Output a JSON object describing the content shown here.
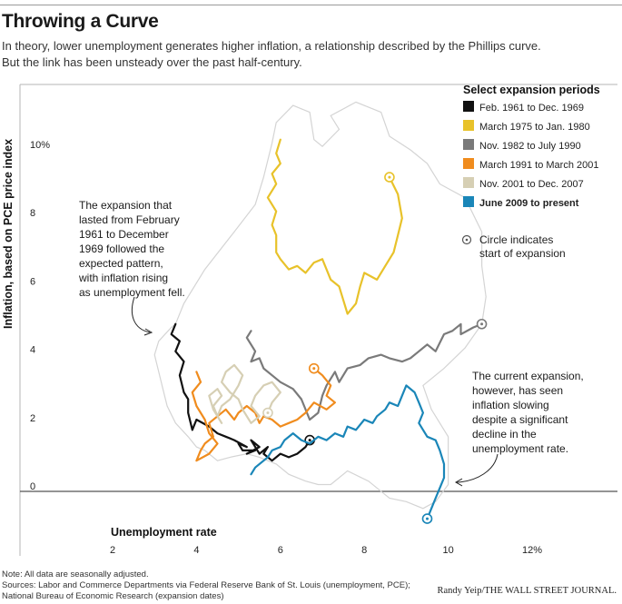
{
  "title": "Throwing a Curve",
  "subtitle_line1": "In theory, lower unemployment generates higher inflation, a relationship described by the Phillips curve.",
  "subtitle_line2": "But the link has been unsteady over the past half-century.",
  "note": "Note: All data are seasonally adjusted.",
  "sources_line1": "Sources: Labor and Commerce Departments via Federal Reserve Bank of St. Louis (unemployment, PCE);",
  "sources_line2": "National Bureau of Economic Research (expansion dates)",
  "credit": "Randy Yeip/THE WALL STREET JOURNAL.",
  "chart_data": {
    "type": "line",
    "xlabel": "Unemployment rate",
    "ylabel": "Inflation, based on PCE price index",
    "xlim": [
      1,
      13
    ],
    "ylim": [
      -2,
      11
    ],
    "x_ticks": [
      "2",
      "4",
      "6",
      "8",
      "10",
      "12%"
    ],
    "y_ticks": [
      "0",
      "2",
      "4",
      "6",
      "8",
      "10%"
    ],
    "grid": false,
    "legend_position": "right",
    "legend_title": "Select expansion periods",
    "background_series_color": "#d4d4d4",
    "circle_note_line1": "Circle indicates",
    "circle_note_line2": "start of expansion",
    "annotation_left": [
      "The expansion that",
      "lasted from February",
      "1961 to December",
      "1969 followed the",
      "expected pattern,",
      "with inflation rising",
      "as unemployment fell."
    ],
    "annotation_right": [
      "The current expansion,",
      "however, has seen",
      "inflation slowing",
      "despite a significant",
      "decline in the",
      "unemployment rate."
    ],
    "series": [
      {
        "name": "Feb. 1961 to Dec. 1969",
        "color": "#111111",
        "bold": false,
        "points": [
          [
            6.7,
            1.5
          ],
          [
            6.6,
            1.3
          ],
          [
            6.4,
            1.1
          ],
          [
            6.2,
            1.0
          ],
          [
            6.0,
            1.1
          ],
          [
            5.8,
            0.9
          ],
          [
            5.6,
            1.1
          ],
          [
            5.7,
            1.3
          ],
          [
            5.5,
            1.1
          ],
          [
            5.3,
            1.5
          ],
          [
            5.5,
            1.3
          ],
          [
            5.2,
            1.1
          ],
          [
            5.4,
            1.2
          ],
          [
            5.1,
            1.2
          ],
          [
            5.0,
            1.4
          ],
          [
            5.2,
            1.3
          ],
          [
            4.9,
            1.5
          ],
          [
            4.7,
            1.6
          ],
          [
            4.5,
            1.7
          ],
          [
            4.3,
            1.9
          ],
          [
            4.0,
            2.1
          ],
          [
            3.9,
            1.8
          ],
          [
            3.8,
            2.3
          ],
          [
            3.8,
            2.7
          ],
          [
            3.7,
            2.9
          ],
          [
            3.6,
            3.4
          ],
          [
            3.7,
            3.8
          ],
          [
            3.5,
            4.1
          ],
          [
            3.6,
            4.4
          ],
          [
            3.4,
            4.6
          ],
          [
            3.5,
            4.9
          ]
        ]
      },
      {
        "name": "March 1975 to Jan. 1980",
        "color": "#e8c22a",
        "bold": false,
        "points": [
          [
            8.6,
            9.2
          ],
          [
            8.8,
            8.7
          ],
          [
            8.9,
            8.0
          ],
          [
            8.8,
            7.5
          ],
          [
            8.7,
            7.0
          ],
          [
            8.5,
            6.6
          ],
          [
            8.3,
            6.2
          ],
          [
            8.0,
            6.4
          ],
          [
            7.9,
            6.0
          ],
          [
            7.8,
            5.5
          ],
          [
            7.6,
            5.2
          ],
          [
            7.5,
            5.6
          ],
          [
            7.4,
            6.0
          ],
          [
            7.2,
            6.2
          ],
          [
            7.1,
            6.5
          ],
          [
            7.0,
            6.8
          ],
          [
            6.8,
            6.7
          ],
          [
            6.6,
            6.4
          ],
          [
            6.4,
            6.6
          ],
          [
            6.2,
            6.5
          ],
          [
            6.0,
            6.8
          ],
          [
            5.9,
            7.0
          ],
          [
            5.9,
            7.5
          ],
          [
            5.8,
            7.8
          ],
          [
            5.9,
            8.2
          ],
          [
            5.7,
            8.6
          ],
          [
            5.9,
            9.0
          ],
          [
            5.8,
            9.3
          ],
          [
            6.0,
            9.6
          ],
          [
            5.9,
            9.9
          ],
          [
            6.0,
            10.3
          ]
        ]
      },
      {
        "name": "Nov. 1982 to July 1990",
        "color": "#7a7a7a",
        "bold": false,
        "points": [
          [
            10.8,
            4.9
          ],
          [
            10.6,
            4.8
          ],
          [
            10.3,
            4.6
          ],
          [
            10.3,
            4.9
          ],
          [
            10.1,
            4.7
          ],
          [
            9.9,
            4.6
          ],
          [
            9.7,
            4.1
          ],
          [
            9.5,
            4.3
          ],
          [
            9.3,
            4.1
          ],
          [
            9.1,
            3.9
          ],
          [
            8.9,
            3.8
          ],
          [
            8.6,
            3.9
          ],
          [
            8.4,
            4.0
          ],
          [
            8.1,
            3.9
          ],
          [
            7.9,
            3.7
          ],
          [
            7.6,
            3.6
          ],
          [
            7.4,
            3.2
          ],
          [
            7.3,
            3.5
          ],
          [
            7.1,
            3.1
          ],
          [
            7.0,
            2.8
          ],
          [
            6.9,
            2.3
          ],
          [
            6.7,
            2.1
          ],
          [
            6.5,
            2.7
          ],
          [
            6.3,
            3.0
          ],
          [
            6.0,
            3.2
          ],
          [
            5.8,
            3.4
          ],
          [
            5.6,
            3.6
          ],
          [
            5.5,
            3.9
          ],
          [
            5.3,
            3.8
          ],
          [
            5.4,
            4.1
          ],
          [
            5.2,
            4.5
          ],
          [
            5.3,
            4.7
          ]
        ]
      },
      {
        "name": "March 1991 to March 2001",
        "color": "#f08c1e",
        "bold": false,
        "points": [
          [
            6.8,
            3.6
          ],
          [
            7.0,
            3.4
          ],
          [
            7.2,
            3.1
          ],
          [
            7.1,
            2.8
          ],
          [
            7.3,
            2.6
          ],
          [
            7.1,
            2.4
          ],
          [
            6.8,
            2.6
          ],
          [
            6.6,
            2.3
          ],
          [
            6.4,
            2.1
          ],
          [
            6.2,
            2.0
          ],
          [
            6.0,
            1.9
          ],
          [
            5.8,
            2.1
          ],
          [
            5.6,
            2.2
          ],
          [
            5.5,
            2.0
          ],
          [
            5.4,
            2.3
          ],
          [
            5.2,
            2.5
          ],
          [
            5.0,
            2.3
          ],
          [
            4.9,
            2.1
          ],
          [
            4.7,
            2.4
          ],
          [
            4.5,
            2.2
          ],
          [
            4.3,
            2.0
          ],
          [
            4.4,
            1.6
          ],
          [
            4.2,
            1.4
          ],
          [
            4.1,
            1.2
          ],
          [
            4.0,
            0.9
          ],
          [
            4.3,
            1.1
          ],
          [
            4.5,
            1.4
          ],
          [
            4.3,
            1.7
          ],
          [
            4.2,
            2.1
          ],
          [
            4.0,
            2.5
          ],
          [
            3.9,
            2.9
          ],
          [
            4.1,
            3.2
          ],
          [
            4.0,
            3.5
          ]
        ]
      },
      {
        "name": "Nov. 2001 to Dec. 2007",
        "color": "#d6cfb4",
        "bold": false,
        "points": [
          [
            5.7,
            2.3
          ],
          [
            5.8,
            2.6
          ],
          [
            6.0,
            2.9
          ],
          [
            5.8,
            3.2
          ],
          [
            5.6,
            3.1
          ],
          [
            5.4,
            2.8
          ],
          [
            5.3,
            2.5
          ],
          [
            5.5,
            2.2
          ],
          [
            5.3,
            2.0
          ],
          [
            5.1,
            2.4
          ],
          [
            5.0,
            2.7
          ],
          [
            4.8,
            2.9
          ],
          [
            4.6,
            3.2
          ],
          [
            4.7,
            3.5
          ],
          [
            4.9,
            3.7
          ],
          [
            5.1,
            3.4
          ],
          [
            5.0,
            3.1
          ],
          [
            4.8,
            2.7
          ],
          [
            4.6,
            2.5
          ],
          [
            4.5,
            2.2
          ],
          [
            4.4,
            2.5
          ],
          [
            4.6,
            2.8
          ],
          [
            4.5,
            3.0
          ],
          [
            4.3,
            2.8
          ],
          [
            4.4,
            2.4
          ],
          [
            4.6,
            2.0
          ]
        ]
      },
      {
        "name": "June 2009 to present",
        "color": "#1a86b8",
        "bold": true,
        "points": [
          [
            9.5,
            -0.8
          ],
          [
            9.6,
            -0.5
          ],
          [
            9.7,
            -0.2
          ],
          [
            9.8,
            0.1
          ],
          [
            9.9,
            0.4
          ],
          [
            9.9,
            0.8
          ],
          [
            9.8,
            1.2
          ],
          [
            9.7,
            1.5
          ],
          [
            9.5,
            1.6
          ],
          [
            9.4,
            1.8
          ],
          [
            9.3,
            2.0
          ],
          [
            9.4,
            2.3
          ],
          [
            9.3,
            2.6
          ],
          [
            9.2,
            2.9
          ],
          [
            9.0,
            3.1
          ],
          [
            8.9,
            2.8
          ],
          [
            8.8,
            2.5
          ],
          [
            8.6,
            2.6
          ],
          [
            8.5,
            2.4
          ],
          [
            8.3,
            2.2
          ],
          [
            8.2,
            2.0
          ],
          [
            8.0,
            2.1
          ],
          [
            7.8,
            1.8
          ],
          [
            7.6,
            1.9
          ],
          [
            7.5,
            1.6
          ],
          [
            7.3,
            1.7
          ],
          [
            7.1,
            1.5
          ],
          [
            6.9,
            1.6
          ],
          [
            6.7,
            1.4
          ],
          [
            6.5,
            1.5
          ],
          [
            6.3,
            1.7
          ],
          [
            6.1,
            1.5
          ],
          [
            6.0,
            1.3
          ],
          [
            5.8,
            1.2
          ],
          [
            5.7,
            1.0
          ],
          [
            5.6,
            0.9
          ],
          [
            5.4,
            0.7
          ],
          [
            5.3,
            0.5
          ]
        ]
      }
    ]
  }
}
